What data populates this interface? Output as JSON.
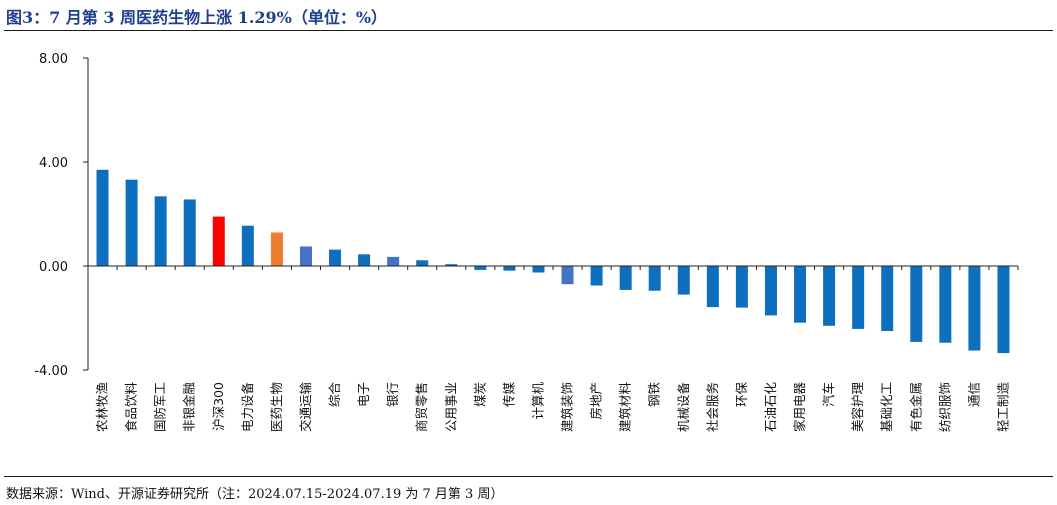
{
  "figure": {
    "title": "图3：7 月第 3 周医药生物上涨 1.29%（单位：%）",
    "source": "数据来源：Wind、开源证券研究所（注：2024.07.15-2024.07.19 为 7 月第 3 周）"
  },
  "chart_data": {
    "type": "bar",
    "title": "图3：7 月第 3 周医药生物上涨 1.29%（单位：%）",
    "xlabel": "",
    "ylabel": "",
    "ylim": [
      -4,
      8
    ],
    "yticks": [
      8,
      4,
      0,
      -4
    ],
    "ytick_labels": [
      "8.00",
      "4.00",
      "0.00",
      "-4.00"
    ],
    "grid": false,
    "categories": [
      "农林牧渔",
      "食品饮料",
      "国防军工",
      "非银金融",
      "沪深300",
      "电力设备",
      "医药生物",
      "交通运输",
      "综合",
      "电子",
      "银行",
      "商贸零售",
      "公用事业",
      "煤炭",
      "传媒",
      "计算机",
      "建筑装饰",
      "房地产",
      "建筑材料",
      "钢铁",
      "机械设备",
      "社会服务",
      "环保",
      "石油石化",
      "家用电器",
      "汽车",
      "美容护理",
      "基础化工",
      "有色金属",
      "纺织服饰",
      "通信",
      "轻工制造"
    ],
    "values": [
      3.7,
      3.32,
      2.68,
      2.56,
      1.9,
      1.55,
      1.29,
      0.75,
      0.63,
      0.45,
      0.35,
      0.22,
      0.07,
      -0.15,
      -0.18,
      -0.25,
      -0.7,
      -0.75,
      -0.92,
      -0.95,
      -1.1,
      -1.58,
      -1.6,
      -1.9,
      -2.18,
      -2.3,
      -2.42,
      -2.5,
      -2.92,
      -2.95,
      -3.25,
      -3.35
    ],
    "colors": [
      "#0f6fbf",
      "#0f6fbf",
      "#0f6fbf",
      "#0f6fbf",
      "#ff0000",
      "#0f6fbf",
      "#ed7d31",
      "#4472c4",
      "#0f6fbf",
      "#0f6fbf",
      "#4472c4",
      "#0f6fbf",
      "#0f6fbf",
      "#0f6fbf",
      "#0f6fbf",
      "#0f6fbf",
      "#4472c4",
      "#0f6fbf",
      "#0f6fbf",
      "#0f6fbf",
      "#0f6fbf",
      "#0f6fbf",
      "#0f6fbf",
      "#0f6fbf",
      "#0f6fbf",
      "#0f6fbf",
      "#0f6fbf",
      "#0f6fbf",
      "#0f6fbf",
      "#0f6fbf",
      "#0f6fbf",
      "#0f6fbf"
    ]
  }
}
